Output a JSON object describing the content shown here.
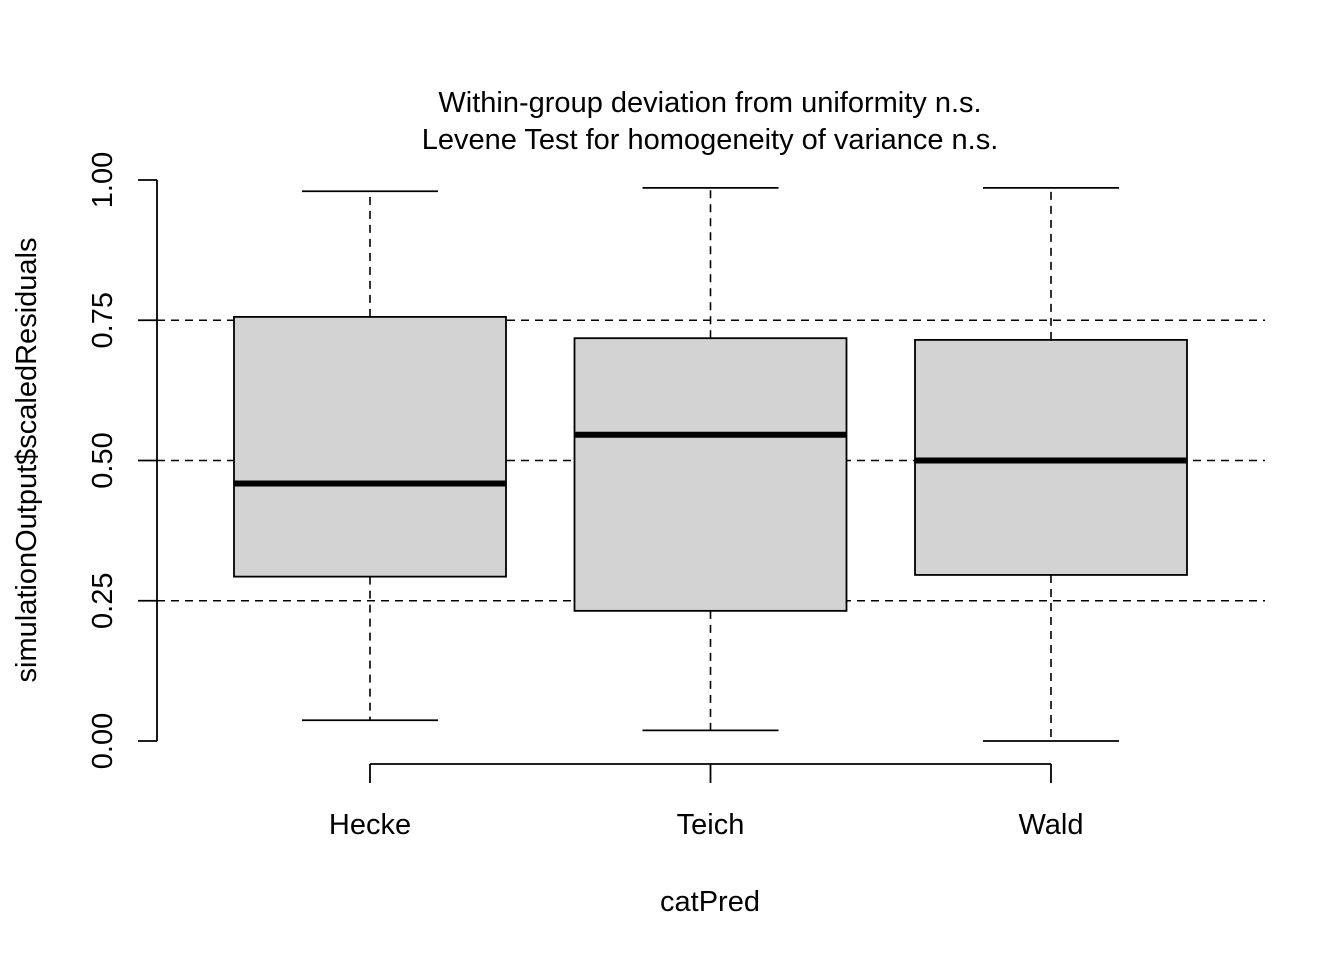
{
  "chart_data": {
    "type": "boxplot",
    "title_lines": [
      "Within-group deviation from uniformity n.s.",
      "Levene Test for homogeneity of variance n.s."
    ],
    "xlabel": "catPred",
    "ylabel": "simulationOutput$scaledResiduals",
    "ylim": [
      0,
      1
    ],
    "yticks": [
      0,
      0.25,
      0.5,
      0.75,
      1
    ],
    "ytick_labels": [
      "0.00",
      "0.25",
      "0.50",
      "0.75",
      "1.00"
    ],
    "reference_lines": [
      0.25,
      0.5,
      0.75
    ],
    "box_color": "#d3d3d3",
    "categories": [
      "Hecke",
      "Teich",
      "Wald"
    ],
    "boxes": [
      {
        "category": "Hecke",
        "whisker_low": 0.037,
        "q1": 0.293,
        "median": 0.459,
        "q3": 0.756,
        "whisker_high": 0.98
      },
      {
        "category": "Teich",
        "whisker_low": 0.019,
        "q1": 0.232,
        "median": 0.546,
        "q3": 0.718,
        "whisker_high": 0.986
      },
      {
        "category": "Wald",
        "whisker_low": 0.0,
        "q1": 0.296,
        "median": 0.5,
        "q3": 0.715,
        "whisker_high": 0.986
      }
    ]
  }
}
